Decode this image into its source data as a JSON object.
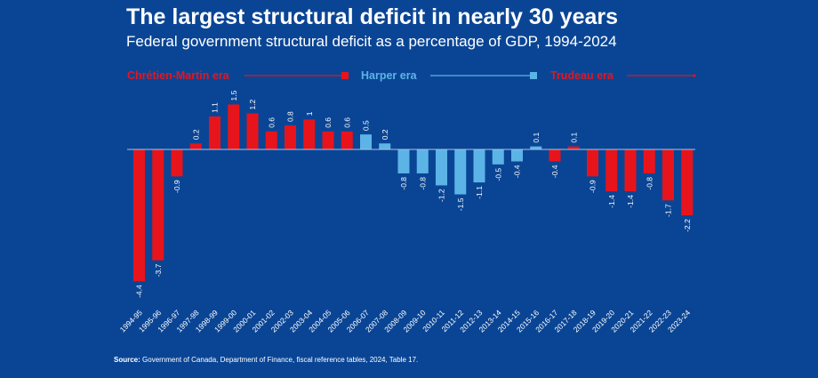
{
  "header": {
    "title": "The largest structural deficit in nearly 30 years",
    "subtitle": "Federal government structural deficit as a percentage of GDP, 1994-2024"
  },
  "eras": [
    {
      "label": "Chrétien-Martin era",
      "color": "#e8141c"
    },
    {
      "label": "Harper era",
      "color": "#5cb4e6"
    },
    {
      "label": "Trudeau era",
      "color": "#e8141c"
    }
  ],
  "source": {
    "label": "Source:",
    "text": " Government of Canada, Department of Finance, fiscal reference tables, 2024, Table 17."
  },
  "chart_data": {
    "type": "bar",
    "title": "The largest structural deficit in nearly 30 years",
    "subtitle": "Federal government structural deficit as a percentage of GDP, 1994-2024",
    "xlabel": "",
    "ylabel": "",
    "ylim": [
      -4.4,
      1.5
    ],
    "grid": false,
    "categories": [
      "1994-95",
      "1995-96",
      "1996-97",
      "1997-98",
      "1998-99",
      "1999-00",
      "2000-01",
      "2001-02",
      "2002-03",
      "2003-04",
      "2004-05",
      "2005-06",
      "2006-07",
      "2007-08",
      "2008-09",
      "2009-10",
      "2010-11",
      "2011-12",
      "2012-13",
      "2013-14",
      "2014-15",
      "2015-16",
      "2016-17",
      "2017-18",
      "2018-19",
      "2019-20",
      "2020-21",
      "2021-22",
      "2022-23",
      "2023-24"
    ],
    "values": [
      -4.4,
      -3.7,
      -0.9,
      0.2,
      1.1,
      1.5,
      1.2,
      0.6,
      0.8,
      1,
      0.6,
      0.6,
      0.5,
      0.2,
      -0.8,
      -0.8,
      -1.2,
      -1.5,
      -1.1,
      -0.5,
      -0.4,
      0.1,
      -0.4,
      0.1,
      -0.9,
      -1.4,
      -1.4,
      -0.8,
      -1.7,
      -2.2
    ],
    "labels": [
      "-4.4",
      "-3.7",
      "-0.9",
      "0.2",
      "1.1",
      "1.5",
      "1.2",
      "0.6",
      "0.8",
      "1",
      "0.6",
      "0.6",
      "0.5",
      "0.2",
      "-0.8",
      "-0.8",
      "-1.2",
      "-1.5",
      "-1.1",
      "-0.5",
      "-0.4",
      "0.1",
      "-0.4",
      "0.1",
      "-0.9",
      "-1.4",
      "-1.4",
      "-0.8",
      "-1.7",
      "-2.2"
    ],
    "era": [
      "Chrétien-Martin",
      "Chrétien-Martin",
      "Chrétien-Martin",
      "Chrétien-Martin",
      "Chrétien-Martin",
      "Chrétien-Martin",
      "Chrétien-Martin",
      "Chrétien-Martin",
      "Chrétien-Martin",
      "Chrétien-Martin",
      "Chrétien-Martin",
      "Chrétien-Martin",
      "Harper",
      "Harper",
      "Harper",
      "Harper",
      "Harper",
      "Harper",
      "Harper",
      "Harper",
      "Harper",
      "Harper",
      "Trudeau",
      "Trudeau",
      "Trudeau",
      "Trudeau",
      "Trudeau",
      "Trudeau",
      "Trudeau",
      "Trudeau"
    ],
    "era_colors": {
      "Chrétien-Martin": "#e8141c",
      "Harper": "#5cb4e6",
      "Trudeau": "#e8141c"
    },
    "legend": [
      "Chrétien-Martin era",
      "Harper era",
      "Trudeau era"
    ],
    "legend_position": "top"
  }
}
